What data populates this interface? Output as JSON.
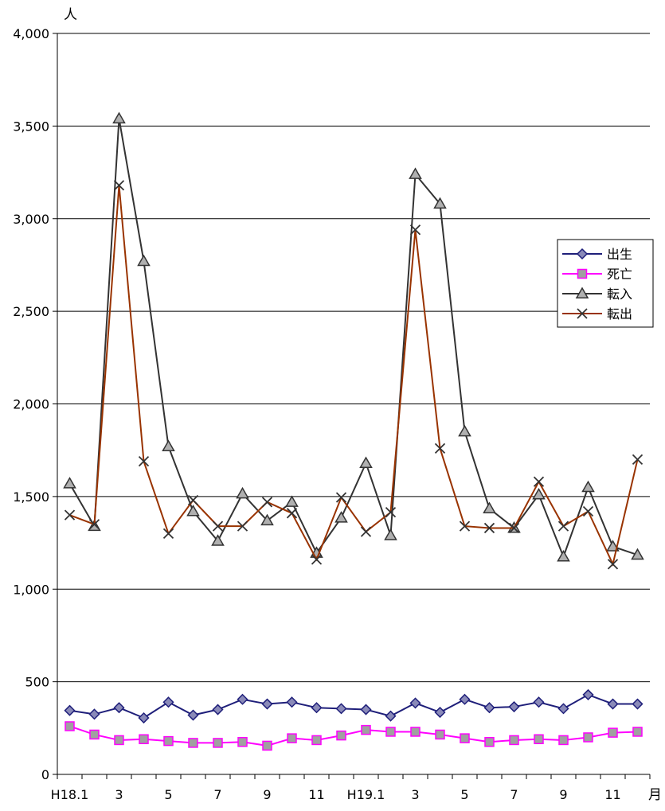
{
  "chart_data": {
    "type": "line",
    "y_unit_label": "人",
    "x_unit_label": "月",
    "ylim": [
      0,
      4000
    ],
    "y_ticks": [
      "0",
      "500",
      "1,000",
      "1,500",
      "2,000",
      "2,500",
      "3,000",
      "3,500",
      "4,000"
    ],
    "y_tick_values": [
      0,
      500,
      1000,
      1500,
      2000,
      2500,
      3000,
      3500,
      4000
    ],
    "grid": true,
    "legend_position": "right",
    "x_tick_labels": [
      "H18.1",
      "",
      "3",
      "",
      "5",
      "",
      "7",
      "",
      "9",
      "",
      "11",
      "",
      "H19.1",
      "",
      "3",
      "",
      "5",
      "",
      "7",
      "",
      "9",
      "",
      "11",
      ""
    ],
    "series": [
      {
        "name": "出生",
        "color": "#1f1f7a",
        "marker": "diamond",
        "marker_fill": "#8a8ab8",
        "values": [
          345,
          325,
          360,
          305,
          390,
          320,
          350,
          405,
          380,
          390,
          360,
          355,
          350,
          315,
          385,
          335,
          405,
          360,
          365,
          390,
          355,
          430,
          380,
          380
        ]
      },
      {
        "name": "死亡",
        "color": "#ff00ff",
        "marker": "square",
        "marker_fill": "#a0a0a0",
        "values": [
          260,
          215,
          185,
          190,
          180,
          170,
          170,
          175,
          155,
          195,
          185,
          210,
          240,
          230,
          230,
          215,
          195,
          175,
          185,
          190,
          185,
          200,
          225,
          230
        ]
      },
      {
        "name": "転入",
        "color": "#333333",
        "marker": "triangle",
        "marker_fill": "#b0b0b0",
        "values": [
          1570,
          1340,
          3540,
          2770,
          1770,
          1420,
          1260,
          1515,
          1370,
          1470,
          1195,
          1385,
          1680,
          1290,
          3240,
          3080,
          1850,
          1435,
          1330,
          1510,
          1175,
          1550,
          1230,
          1185
        ]
      },
      {
        "name": "転出",
        "color": "#993300",
        "marker": "x",
        "marker_fill": "#333333",
        "values": [
          1400,
          1350,
          3180,
          1690,
          1300,
          1480,
          1340,
          1340,
          1470,
          1410,
          1160,
          1495,
          1310,
          1415,
          2940,
          1760,
          1340,
          1330,
          1330,
          1580,
          1340,
          1420,
          1135,
          1700
        ]
      }
    ]
  }
}
